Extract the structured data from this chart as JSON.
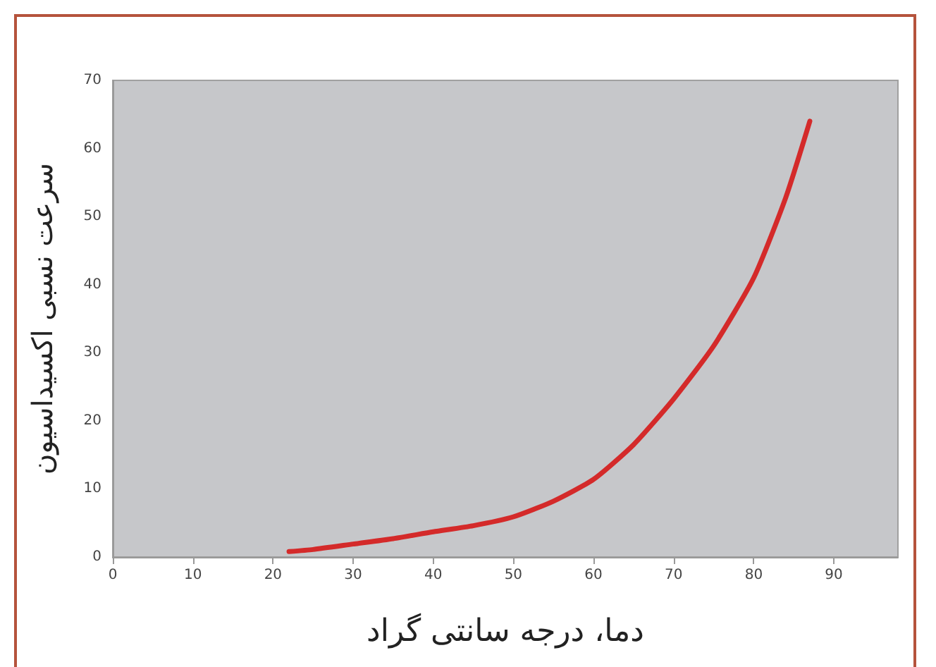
{
  "chart_data": {
    "type": "line",
    "xlabel": "دما، درجه سانتی گراد",
    "ylabel": "سرعت نسبی اکسیداسیون",
    "series": [
      {
        "color": "#d42a2a",
        "x": [
          22,
          25,
          30,
          35,
          40,
          45,
          50,
          55,
          60,
          65,
          70,
          75,
          80,
          84,
          87
        ],
        "values": [
          0.8,
          1.1,
          1.9,
          2.7,
          3.7,
          4.6,
          5.9,
          8.2,
          11.4,
          16.5,
          23.2,
          31,
          41,
          52.8,
          64
        ]
      }
    ],
    "xlim": [
      0,
      98
    ],
    "xticks": [
      0,
      10,
      20,
      30,
      40,
      50,
      60,
      70,
      80,
      90
    ],
    "ylim": [
      0,
      70
    ],
    "yticks": [
      0,
      10,
      20,
      30,
      40,
      50,
      60,
      70
    ],
    "grid": false,
    "marker": "none",
    "line_style": "solid"
  }
}
